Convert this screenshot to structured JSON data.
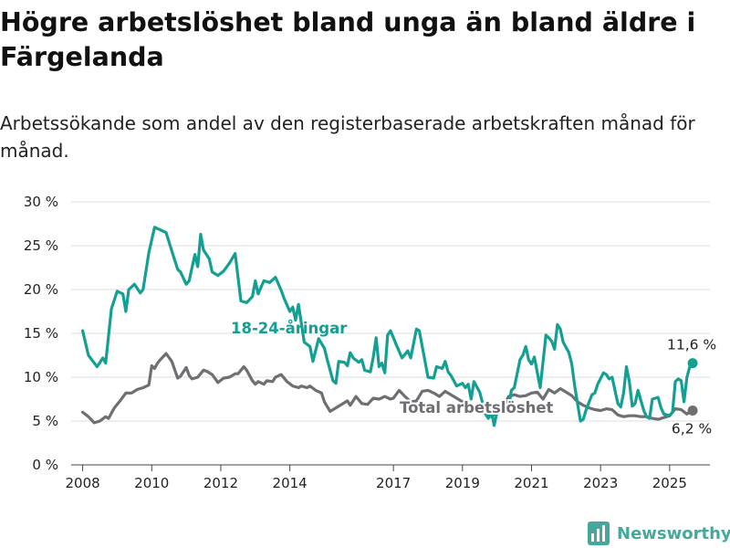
{
  "title": "Högre arbetslöshet bland unga än bland äldre i Färgelanda",
  "subtitle": "Arbetssökande som andel av den registerbaserade arbetskraften månad för månad.",
  "brand": "Newsworthy",
  "colors": {
    "young": "#13a093",
    "total": "#6f6e73",
    "grid": "#dddddd",
    "brand": "#46a89b"
  },
  "chart_data": {
    "type": "line",
    "xlabel": "",
    "ylabel": "",
    "ylim": [
      0,
      30
    ],
    "yticks": [
      0,
      5,
      10,
      15,
      20,
      25,
      30
    ],
    "ytick_labels": [
      "0 %",
      "5 %",
      "10 %",
      "15 %",
      "20 %",
      "25 %",
      "30 %"
    ],
    "xticks": [
      2008,
      2010,
      2012,
      2014,
      2017,
      2019,
      2021,
      2023,
      2025
    ],
    "grid": "horizontal",
    "series": [
      {
        "name": "18-24-åringar",
        "color": "#13a093",
        "label_value": "11,6 %",
        "points": [
          [
            "2008-01",
            15.3
          ],
          [
            "2008-03",
            12.5
          ],
          [
            "2008-06",
            11.2
          ],
          [
            "2008-08",
            12.2
          ],
          [
            "2008-09",
            11.6
          ],
          [
            "2008-11",
            17.8
          ],
          [
            "2009-01",
            19.8
          ],
          [
            "2009-03",
            19.5
          ],
          [
            "2009-04",
            17.5
          ],
          [
            "2009-05",
            20.0
          ],
          [
            "2009-07",
            20.6
          ],
          [
            "2009-09",
            19.6
          ],
          [
            "2009-10",
            20.0
          ],
          [
            "2009-12",
            24.2
          ],
          [
            "2010-02",
            27.1
          ],
          [
            "2010-04",
            26.8
          ],
          [
            "2010-06",
            26.5
          ],
          [
            "2010-08",
            24.4
          ],
          [
            "2010-10",
            22.3
          ],
          [
            "2010-11",
            22.0
          ],
          [
            "2011-01",
            20.6
          ],
          [
            "2011-02",
            21.0
          ],
          [
            "2011-04",
            24.0
          ],
          [
            "2011-05",
            22.6
          ],
          [
            "2011-06",
            26.3
          ],
          [
            "2011-07",
            24.5
          ],
          [
            "2011-09",
            23.5
          ],
          [
            "2011-10",
            22.0
          ],
          [
            "2011-12",
            21.6
          ],
          [
            "2012-02",
            22.1
          ],
          [
            "2012-04",
            23.0
          ],
          [
            "2012-06",
            24.1
          ],
          [
            "2012-08",
            18.7
          ],
          [
            "2012-10",
            18.5
          ],
          [
            "2012-12",
            19.2
          ],
          [
            "2013-01",
            21.0
          ],
          [
            "2013-02",
            19.5
          ],
          [
            "2013-04",
            21.0
          ],
          [
            "2013-06",
            20.8
          ],
          [
            "2013-08",
            21.4
          ],
          [
            "2013-10",
            19.9
          ],
          [
            "2013-11",
            19.0
          ],
          [
            "2014-01",
            17.5
          ],
          [
            "2014-02",
            18.0
          ],
          [
            "2014-03",
            16.5
          ],
          [
            "2014-04",
            18.3
          ],
          [
            "2014-06",
            14.0
          ],
          [
            "2014-08",
            13.5
          ],
          [
            "2014-09",
            11.8
          ],
          [
            "2014-11",
            14.4
          ],
          [
            "2015-01",
            13.3
          ],
          [
            "2015-02",
            12.0
          ],
          [
            "2015-04",
            9.6
          ],
          [
            "2015-05",
            9.3
          ],
          [
            "2015-06",
            11.8
          ],
          [
            "2015-08",
            11.7
          ],
          [
            "2015-09",
            11.3
          ],
          [
            "2015-10",
            12.8
          ],
          [
            "2015-11",
            12.2
          ],
          [
            "2016-01",
            11.7
          ],
          [
            "2016-02",
            12.0
          ],
          [
            "2016-03",
            10.8
          ],
          [
            "2016-05",
            10.6
          ],
          [
            "2016-06",
            12.3
          ],
          [
            "2016-07",
            14.5
          ],
          [
            "2016-08",
            11.2
          ],
          [
            "2016-09",
            11.6
          ],
          [
            "2016-10",
            10.5
          ],
          [
            "2016-11",
            14.8
          ],
          [
            "2016-12",
            15.3
          ],
          [
            "2017-02",
            13.7
          ],
          [
            "2017-04",
            12.2
          ],
          [
            "2017-06",
            13.0
          ],
          [
            "2017-07",
            12.2
          ],
          [
            "2017-09",
            15.5
          ],
          [
            "2017-10",
            15.3
          ],
          [
            "2017-12",
            11.8
          ],
          [
            "2018-01",
            10.0
          ],
          [
            "2018-03",
            9.9
          ],
          [
            "2018-04",
            11.2
          ],
          [
            "2018-06",
            11.0
          ],
          [
            "2018-07",
            11.8
          ],
          [
            "2018-08",
            10.6
          ],
          [
            "2018-09",
            10.2
          ],
          [
            "2018-11",
            9.0
          ],
          [
            "2019-01",
            9.3
          ],
          [
            "2019-02",
            8.8
          ],
          [
            "2019-03",
            9.2
          ],
          [
            "2019-04",
            7.5
          ],
          [
            "2019-05",
            9.5
          ],
          [
            "2019-07",
            8.3
          ],
          [
            "2019-09",
            5.8
          ],
          [
            "2019-10",
            5.3
          ],
          [
            "2019-11",
            6.3
          ],
          [
            "2019-12",
            4.5
          ],
          [
            "2020-01",
            6.0
          ],
          [
            "2020-03",
            6.8
          ],
          [
            "2020-05",
            6.5
          ],
          [
            "2020-06",
            8.5
          ],
          [
            "2020-07",
            8.8
          ],
          [
            "2020-09",
            12.0
          ],
          [
            "2020-10",
            12.5
          ],
          [
            "2020-11",
            13.5
          ],
          [
            "2020-12",
            12.0
          ],
          [
            "2021-01",
            11.5
          ],
          [
            "2021-02",
            12.3
          ],
          [
            "2021-04",
            8.8
          ],
          [
            "2021-06",
            14.8
          ],
          [
            "2021-07",
            14.5
          ],
          [
            "2021-08",
            14.1
          ],
          [
            "2021-09",
            13.2
          ],
          [
            "2021-10",
            16.0
          ],
          [
            "2021-11",
            15.5
          ],
          [
            "2021-12",
            14.0
          ],
          [
            "2022-02",
            12.8
          ],
          [
            "2022-03",
            11.5
          ],
          [
            "2022-04",
            9.0
          ],
          [
            "2022-06",
            5.0
          ],
          [
            "2022-07",
            5.2
          ],
          [
            "2022-08",
            6.3
          ],
          [
            "2022-10",
            8.0
          ],
          [
            "2022-11",
            8.2
          ],
          [
            "2022-12",
            9.2
          ],
          [
            "2023-02",
            10.5
          ],
          [
            "2023-03",
            10.3
          ],
          [
            "2023-04",
            9.8
          ],
          [
            "2023-05",
            10.0
          ],
          [
            "2023-07",
            7.0
          ],
          [
            "2023-08",
            6.6
          ],
          [
            "2023-09",
            8.2
          ],
          [
            "2023-10",
            11.2
          ],
          [
            "2023-11",
            9.5
          ],
          [
            "2023-12",
            6.7
          ],
          [
            "2024-01",
            7.0
          ],
          [
            "2024-02",
            8.5
          ],
          [
            "2024-04",
            6.2
          ],
          [
            "2024-05",
            5.5
          ],
          [
            "2024-06",
            5.3
          ],
          [
            "2024-07",
            7.5
          ],
          [
            "2024-08",
            7.6
          ],
          [
            "2024-09",
            7.7
          ],
          [
            "2024-10",
            6.5
          ],
          [
            "2024-11",
            5.8
          ],
          [
            "2025-01",
            5.6
          ],
          [
            "2025-02",
            6.0
          ],
          [
            "2025-03",
            9.5
          ],
          [
            "2025-04",
            9.8
          ],
          [
            "2025-05",
            9.6
          ],
          [
            "2025-06",
            7.2
          ],
          [
            "2025-07",
            10.0
          ],
          [
            "2025-08",
            11.2
          ],
          [
            "2025-09",
            11.6
          ]
        ]
      },
      {
        "name": "Total arbetslöshet",
        "color": "#6f6e73",
        "label_value": "6,2 %",
        "points": [
          [
            "2008-01",
            6.0
          ],
          [
            "2008-03",
            5.5
          ],
          [
            "2008-05",
            4.8
          ],
          [
            "2008-07",
            5.0
          ],
          [
            "2008-09",
            5.5
          ],
          [
            "2008-10",
            5.3
          ],
          [
            "2008-12",
            6.5
          ],
          [
            "2009-02",
            7.3
          ],
          [
            "2009-04",
            8.2
          ],
          [
            "2009-06",
            8.2
          ],
          [
            "2009-08",
            8.6
          ],
          [
            "2009-10",
            8.8
          ],
          [
            "2009-12",
            9.1
          ],
          [
            "2010-01",
            11.3
          ],
          [
            "2010-02",
            11.0
          ],
          [
            "2010-03",
            11.6
          ],
          [
            "2010-04",
            12.0
          ],
          [
            "2010-06",
            12.7
          ],
          [
            "2010-08",
            11.8
          ],
          [
            "2010-10",
            9.9
          ],
          [
            "2010-11",
            10.1
          ],
          [
            "2011-01",
            11.1
          ],
          [
            "2011-02",
            10.2
          ],
          [
            "2011-03",
            9.8
          ],
          [
            "2011-05",
            10.0
          ],
          [
            "2011-07",
            10.8
          ],
          [
            "2011-08",
            10.7
          ],
          [
            "2011-10",
            10.3
          ],
          [
            "2011-12",
            9.4
          ],
          [
            "2012-02",
            9.9
          ],
          [
            "2012-04",
            10.0
          ],
          [
            "2012-06",
            10.4
          ],
          [
            "2012-07",
            10.4
          ],
          [
            "2012-09",
            11.2
          ],
          [
            "2012-10",
            10.8
          ],
          [
            "2012-12",
            9.6
          ],
          [
            "2013-01",
            9.2
          ],
          [
            "2013-02",
            9.5
          ],
          [
            "2013-04",
            9.2
          ],
          [
            "2013-05",
            9.6
          ],
          [
            "2013-07",
            9.5
          ],
          [
            "2013-08",
            10.0
          ],
          [
            "2013-10",
            10.3
          ],
          [
            "2013-12",
            9.5
          ],
          [
            "2014-02",
            9.0
          ],
          [
            "2014-04",
            8.8
          ],
          [
            "2014-05",
            9.0
          ],
          [
            "2014-07",
            8.8
          ],
          [
            "2014-08",
            9.0
          ],
          [
            "2014-10",
            8.5
          ],
          [
            "2014-12",
            8.2
          ],
          [
            "2015-01",
            7.2
          ],
          [
            "2015-03",
            6.1
          ],
          [
            "2015-05",
            6.5
          ],
          [
            "2015-07",
            6.9
          ],
          [
            "2015-09",
            7.3
          ],
          [
            "2015-10",
            6.8
          ],
          [
            "2015-12",
            7.8
          ],
          [
            "2016-02",
            7.0
          ],
          [
            "2016-04",
            6.9
          ],
          [
            "2016-06",
            7.6
          ],
          [
            "2016-08",
            7.5
          ],
          [
            "2016-10",
            7.8
          ],
          [
            "2016-12",
            7.5
          ],
          [
            "2017-01",
            7.6
          ],
          [
            "2017-03",
            8.5
          ],
          [
            "2017-05",
            7.8
          ],
          [
            "2017-07",
            7.2
          ],
          [
            "2017-09",
            7.3
          ],
          [
            "2017-11",
            8.4
          ],
          [
            "2018-01",
            8.5
          ],
          [
            "2018-03",
            8.2
          ],
          [
            "2018-05",
            7.8
          ],
          [
            "2018-07",
            8.4
          ],
          [
            "2018-09",
            8.0
          ],
          [
            "2018-11",
            7.6
          ],
          [
            "2019-01",
            7.2
          ],
          [
            "2019-03",
            6.8
          ],
          [
            "2019-05",
            6.2
          ],
          [
            "2019-07",
            6.5
          ],
          [
            "2019-09",
            6.0
          ],
          [
            "2019-11",
            5.5
          ],
          [
            "2020-01",
            6.0
          ],
          [
            "2020-03",
            6.5
          ],
          [
            "2020-05",
            7.8
          ],
          [
            "2020-07",
            8.0
          ],
          [
            "2020-09",
            7.8
          ],
          [
            "2020-11",
            7.9
          ],
          [
            "2021-01",
            8.2
          ],
          [
            "2021-03",
            8.3
          ],
          [
            "2021-05",
            7.5
          ],
          [
            "2021-07",
            8.6
          ],
          [
            "2021-09",
            8.2
          ],
          [
            "2021-11",
            8.7
          ],
          [
            "2022-01",
            8.3
          ],
          [
            "2022-03",
            7.9
          ],
          [
            "2022-05",
            7.2
          ],
          [
            "2022-07",
            6.8
          ],
          [
            "2022-09",
            6.5
          ],
          [
            "2022-11",
            6.3
          ],
          [
            "2023-01",
            6.2
          ],
          [
            "2023-03",
            6.4
          ],
          [
            "2023-05",
            6.3
          ],
          [
            "2023-07",
            5.7
          ],
          [
            "2023-09",
            5.5
          ],
          [
            "2023-11",
            5.6
          ],
          [
            "2024-01",
            5.6
          ],
          [
            "2024-03",
            5.5
          ],
          [
            "2024-05",
            5.5
          ],
          [
            "2024-07",
            5.3
          ],
          [
            "2024-09",
            5.2
          ],
          [
            "2024-11",
            5.4
          ],
          [
            "2025-01",
            5.6
          ],
          [
            "2025-03",
            6.4
          ],
          [
            "2025-05",
            6.3
          ],
          [
            "2025-07",
            5.8
          ],
          [
            "2025-09",
            6.2
          ]
        ]
      }
    ]
  }
}
